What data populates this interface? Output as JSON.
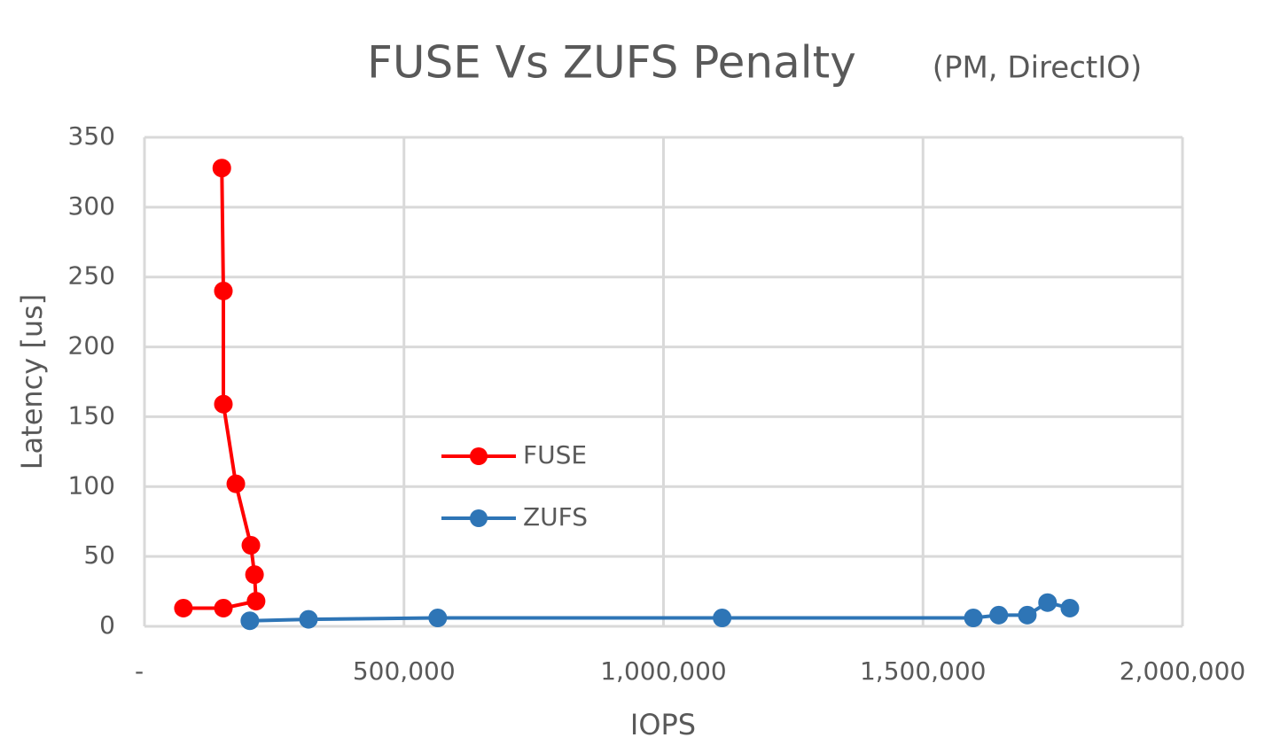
{
  "chart_data": {
    "type": "scatter-line",
    "title": "FUSE Vs ZUFS Penalty",
    "subtitle": "(PM, DirectIO)",
    "x_label": "IOPS",
    "y_label": "Latency [us]",
    "series": [
      {
        "name": "FUSE",
        "color": "#ff0000",
        "x": [
          75000,
          152000,
          215000,
          212000,
          205000,
          176000,
          152000,
          152000,
          149000
        ],
        "values": [
          13,
          13,
          18,
          37,
          58,
          102,
          159,
          240,
          328
        ]
      },
      {
        "name": "ZUFS",
        "color": "#2e75b6",
        "x": [
          203000,
          316000,
          565000,
          1113000,
          1597000,
          1646000,
          1701000,
          1740000,
          1783000
        ],
        "values": [
          4,
          5,
          6,
          6,
          6,
          8,
          8,
          17,
          13
        ]
      }
    ],
    "xlim": [
      0,
      2000000
    ],
    "xticks": [
      {
        "value": 0,
        "label": "-"
      },
      {
        "value": 500000,
        "label": "500,000"
      },
      {
        "value": 1000000,
        "label": "1,000,000"
      },
      {
        "value": 1500000,
        "label": "1,500,000"
      },
      {
        "value": 2000000,
        "label": "2,000,000"
      }
    ],
    "ylim": [
      0,
      350
    ],
    "yticks": [
      0,
      50,
      100,
      150,
      200,
      250,
      300,
      350
    ],
    "grid": true
  }
}
